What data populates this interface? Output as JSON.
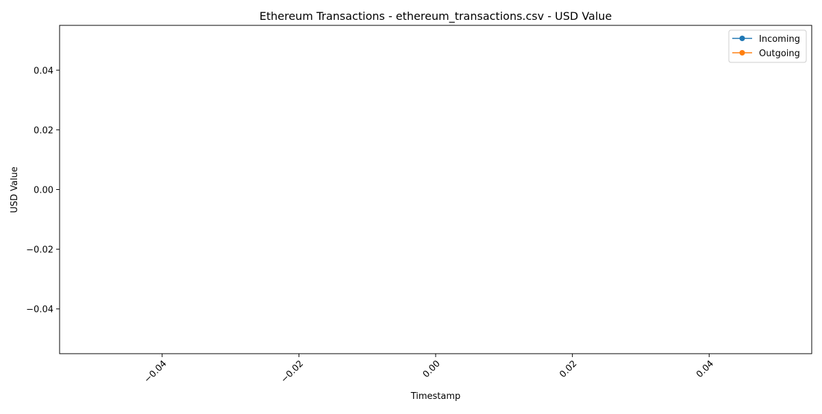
{
  "chart_data": {
    "type": "line",
    "title": "Ethereum Transactions - ethereum_transactions.csv - USD Value",
    "xlabel": "Timestamp",
    "ylabel": "USD Value",
    "xlim": [
      -0.055,
      0.055
    ],
    "ylim": [
      -0.055,
      0.055
    ],
    "x_ticks": [
      -0.04,
      -0.02,
      0.0,
      0.02,
      0.04
    ],
    "x_tick_labels": [
      "−0.04",
      "−0.02",
      "0.00",
      "0.02",
      "0.04"
    ],
    "y_ticks": [
      0.04,
      0.02,
      0.0,
      -0.02,
      -0.04
    ],
    "y_tick_labels": [
      "0.04",
      "0.02",
      "0.00",
      "−0.02",
      "−0.04"
    ],
    "grid": false,
    "legend_position": "top-right",
    "series": [
      {
        "name": "Incoming",
        "color": "#1f77b4",
        "marker": "circle",
        "x": [],
        "y": []
      },
      {
        "name": "Outgoing",
        "color": "#ff7f0e",
        "marker": "circle",
        "x": [],
        "y": []
      }
    ]
  }
}
